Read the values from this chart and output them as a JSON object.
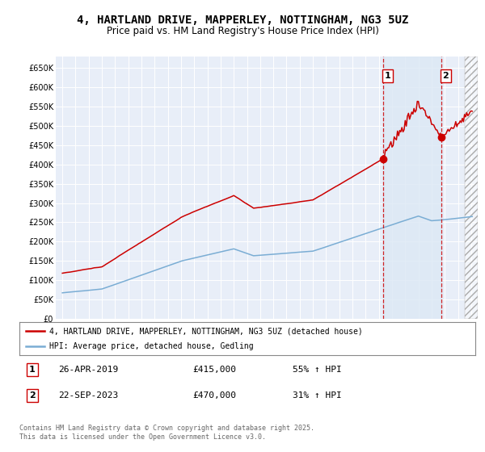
{
  "title": "4, HARTLAND DRIVE, MAPPERLEY, NOTTINGHAM, NG3 5UZ",
  "subtitle": "Price paid vs. HM Land Registry's House Price Index (HPI)",
  "title_fontsize": 10,
  "subtitle_fontsize": 8.5,
  "bg_color": "#ffffff",
  "plot_bg_color": "#e8eef8",
  "grid_color": "#ffffff",
  "red_color": "#cc0000",
  "blue_color": "#7aadd4",
  "dashed_color": "#cc0000",
  "shade_color": "#dce8f5",
  "legend_label_red": "4, HARTLAND DRIVE, MAPPERLEY, NOTTINGHAM, NG3 5UZ (detached house)",
  "legend_label_blue": "HPI: Average price, detached house, Gedling",
  "marker1_date": 2019.32,
  "marker1_price": 415000,
  "marker2_date": 2023.73,
  "marker2_price": 470000,
  "footer": "Contains HM Land Registry data © Crown copyright and database right 2025.\nThis data is licensed under the Open Government Licence v3.0.",
  "ylim": [
    0,
    680000
  ],
  "xlim_left": 1994.5,
  "xlim_right": 2026.5,
  "yticks": [
    0,
    50000,
    100000,
    150000,
    200000,
    250000,
    300000,
    350000,
    400000,
    450000,
    500000,
    550000,
    600000,
    650000
  ],
  "ytick_labels": [
    "£0",
    "£50K",
    "£100K",
    "£150K",
    "£200K",
    "£250K",
    "£300K",
    "£350K",
    "£400K",
    "£450K",
    "£500K",
    "£550K",
    "£600K",
    "£650K"
  ],
  "xticks": [
    1995,
    1996,
    1997,
    1998,
    1999,
    2000,
    2001,
    2002,
    2003,
    2004,
    2005,
    2006,
    2007,
    2008,
    2009,
    2010,
    2011,
    2012,
    2013,
    2014,
    2015,
    2016,
    2017,
    2018,
    2019,
    2020,
    2021,
    2022,
    2023,
    2024,
    2025,
    2026
  ]
}
